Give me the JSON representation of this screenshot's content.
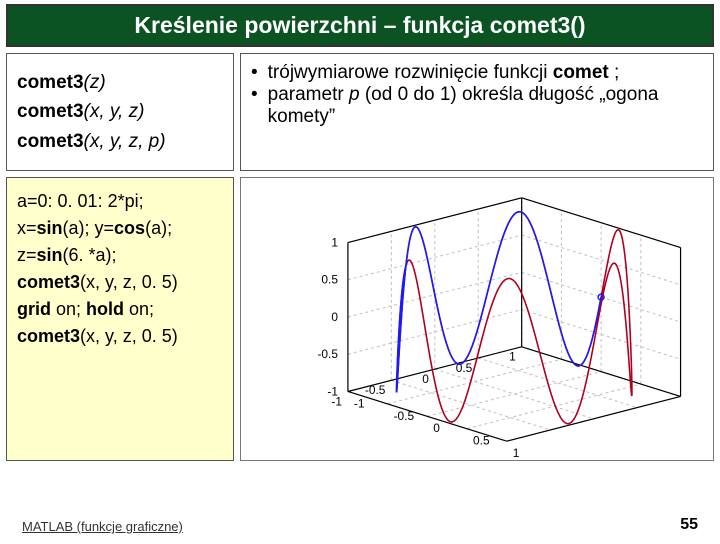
{
  "title": "Kreślenie powierzchni – funkcja comet3()",
  "syntax": {
    "lines": [
      {
        "fn": "comet3",
        "args": "(z)"
      },
      {
        "fn": "comet3",
        "args": "(x, y, z)"
      },
      {
        "fn": "comet3",
        "args": "(x, y, z, p)"
      }
    ]
  },
  "desc": {
    "b1_a": "trójwymiarowe rozwinięcie funkcji ",
    "b1_kw": "comet",
    "b1_b": " ;",
    "b2_a": "parametr ",
    "b2_it": "p",
    "b2_b": " (od 0 do 1) określa długość „ogona komety”"
  },
  "code": {
    "l1": "a=0: 0. 01: 2*pi;",
    "l2a": "x=",
    "l2b": "sin",
    "l2c": "(a);  y=",
    "l2d": "cos",
    "l2e": "(a);",
    "l3a": "z=",
    "l3b": "sin",
    "l3c": "(6. *a);",
    "l4a": "comet3",
    "l4b": "(x, y, z, 0. 5)",
    "l5a": "grid",
    "l5b": " on;  ",
    "l5c": "hold",
    "l5d": " on;",
    "l6a": "comet3",
    "l6b": "(x, y, z, 0. 5)"
  },
  "footer": "MATLAB (funkcje graficzne)",
  "page": "55",
  "chart": {
    "type": "3d-line",
    "colors": {
      "axes": "#000000",
      "grid": "#bfbfbf",
      "line1": "#b00020",
      "line2": "#1a1aff",
      "tick_font": "#000000",
      "bg": "#ffffff"
    },
    "z_ticks": [
      "-1",
      "-0.5",
      "0",
      "0.5",
      "1"
    ],
    "y_ticks": [
      "-1",
      "-0.5",
      "0",
      "0.5",
      "1"
    ],
    "x_ticks": [
      "-1",
      "-0.5",
      "0",
      "0.5",
      "1"
    ],
    "tick_fontsize": 12
  }
}
